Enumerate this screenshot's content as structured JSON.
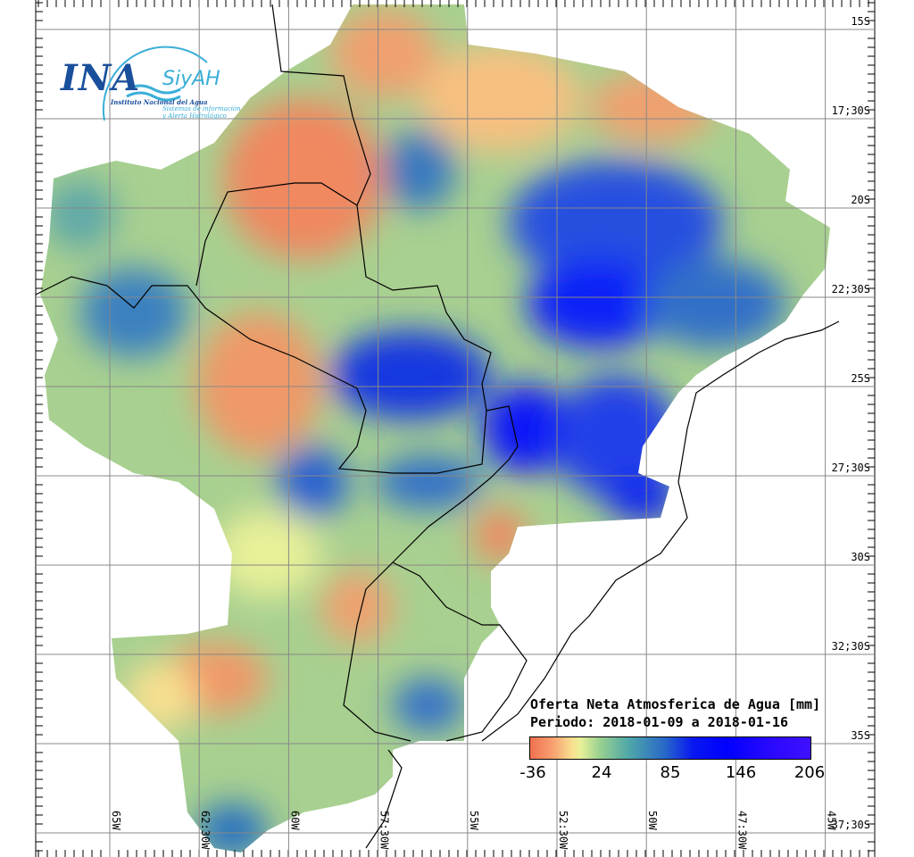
{
  "logo": {
    "name": "INA",
    "brand": "SiyAH",
    "institute": "Instituto Nacional del Agua",
    "system_line1": "Sistemas de información",
    "system_line2": "y Alerta Hidrológico"
  },
  "map": {
    "title": "Oferta Neta Atmosferica de Agua [mm]",
    "period": "Periodo: 2018-01-09 a 2018-01-16",
    "latitude_labels": [
      "15S",
      "17;30S",
      "20S",
      "22;30S",
      "25S",
      "27;30S",
      "30S",
      "32;30S",
      "35S",
      "37;30S"
    ],
    "longitude_labels": [
      "65W",
      "62:30W",
      "60W",
      "57:30W",
      "55W",
      "52:30W",
      "50W",
      "47:30W",
      "45W"
    ],
    "colorbar": {
      "ticks": [
        "-36",
        "24",
        "85",
        "146",
        "206"
      ],
      "colors": [
        "#f07050",
        "#f8e090",
        "#98d090",
        "#2868c8",
        "#0000ff",
        "#4010ff"
      ]
    }
  }
}
